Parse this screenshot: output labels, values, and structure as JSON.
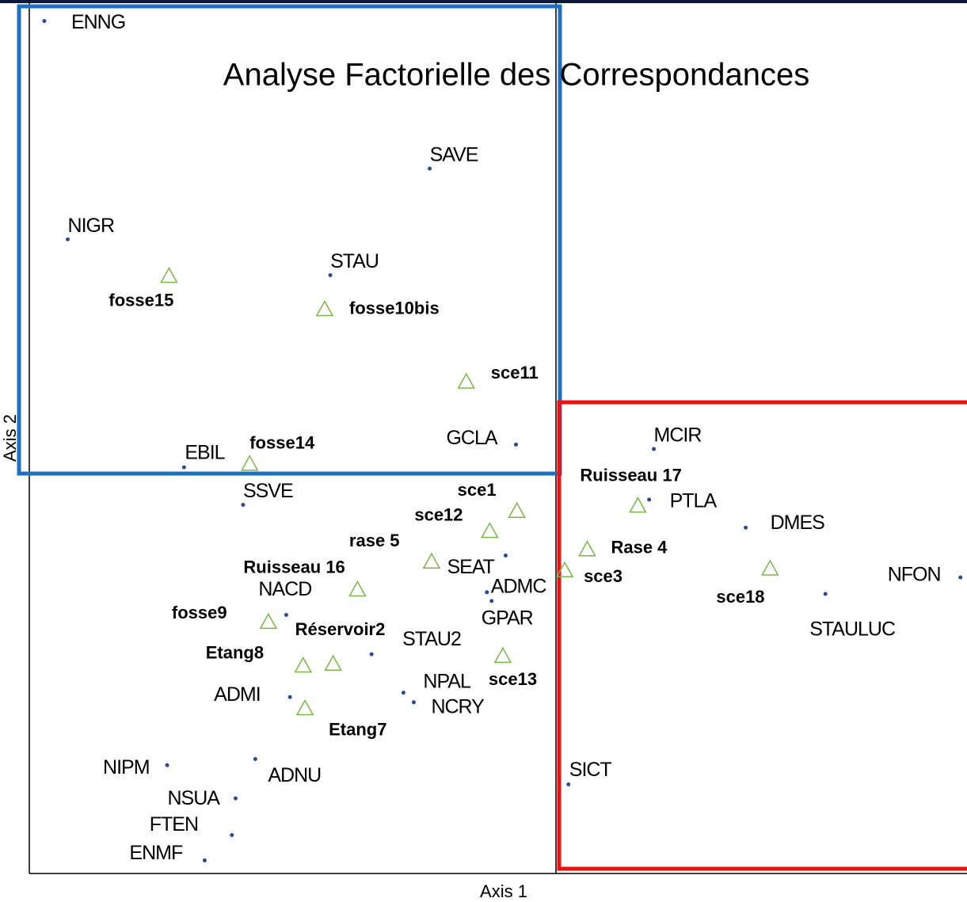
{
  "chart_data": {
    "type": "scatter",
    "title": "Analyse Factorielle des Correspondances",
    "x_label": "Axis 1",
    "y_label": "Axis 2",
    "xlim": [
      0,
      100
    ],
    "ylim": [
      0,
      100
    ],
    "series": [
      {
        "marker": "dot",
        "color": "#2e4a8f",
        "labels": [
          "ENNG",
          "SAVE",
          "NIGR",
          "STAU",
          "GCLA",
          "EBIL",
          "SSVE",
          "MCIR",
          "PTLA",
          "DMES",
          "NFON",
          "STAULUC",
          "SEAT",
          "ADMC",
          "GPAR",
          "NACD",
          "STAU2",
          "NPAL",
          "NCRY",
          "ADMI",
          "NIPM",
          "ADNU",
          "NSUA",
          "FTEN",
          "ENMF",
          "SICT"
        ],
        "x": [
          1.6,
          42.7,
          4.1,
          32.1,
          51.9,
          16.5,
          22.8,
          66.6,
          66.1,
          76.4,
          99.3,
          84.9,
          50.8,
          48.8,
          49.3,
          27.4,
          36.5,
          39.9,
          41.0,
          27.8,
          14.7,
          24.1,
          22.0,
          21.6,
          18.7,
          57.5
        ],
        "values": [
          97.6,
          80.7,
          72.6,
          68.5,
          49.1,
          46.5,
          42.2,
          48.6,
          42.8,
          39.6,
          33.9,
          32.0,
          36.4,
          32.2,
          31.2,
          29.6,
          25.1,
          20.7,
          19.6,
          20.2,
          12.4,
          13.1,
          8.6,
          4.4,
          1.5,
          10.2
        ]
      },
      {
        "marker": "triangle",
        "color": "#7ab648",
        "labels": [
          "fosse15",
          "fosse10bis",
          "sce11",
          "fosse14",
          "sce1",
          "sce12",
          "rase 5",
          "Ruisseau 16",
          "fosse9",
          "Réservoir2",
          "Etang8",
          "sce13",
          "Etang7",
          "Ruisseau 17",
          "Rase 4",
          "sce3",
          "sce18"
        ],
        "x": [
          14.9,
          31.5,
          46.6,
          23.5,
          52.0,
          49.1,
          42.9,
          35.0,
          25.5,
          32.4,
          29.2,
          50.5,
          29.4,
          64.9,
          59.5,
          57.1,
          79.0
        ],
        "values": [
          68.4,
          64.6,
          56.3,
          46.9,
          41.5,
          39.2,
          35.7,
          32.5,
          28.8,
          24.0,
          23.8,
          24.9,
          18.9,
          42.1,
          37.1,
          34.7,
          34.9
        ]
      }
    ]
  }
}
